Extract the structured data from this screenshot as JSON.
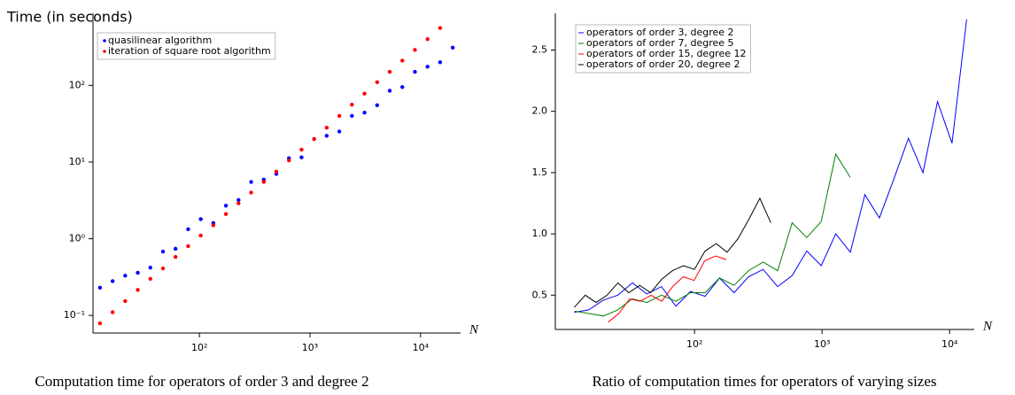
{
  "chart_data": [
    {
      "type": "scatter",
      "ylabel": "Time (in seconds)",
      "xlabel": "N",
      "caption": "Computation time for operators of order 3 and degree 2",
      "xlog": true,
      "ylog": true,
      "xlim": [
        10.9,
        23000
      ],
      "ylim": [
        0.059,
        870
      ],
      "xticks": [
        {
          "value": 100,
          "label": "10²"
        },
        {
          "value": 1000,
          "label": "10³"
        },
        {
          "value": 10000,
          "label": "10⁴"
        }
      ],
      "yticks": [
        {
          "value": 0.1,
          "label": "10⁻¹"
        },
        {
          "value": 1,
          "label": "10⁰"
        },
        {
          "value": 10,
          "label": "10¹"
        },
        {
          "value": 100,
          "label": "10²"
        }
      ],
      "legend": "upper left",
      "series": [
        {
          "name": "quasilinear algorithm",
          "color": "#0000ff",
          "x": [
            12.6,
            16.4,
            21.3,
            27.7,
            36.0,
            46.8,
            60.8,
            79.1,
            102.8,
            133.6,
            173.7,
            225.8,
            293.6,
            381.7,
            496.2,
            645.0,
            838.5,
            1090,
            1417,
            1842,
            2395,
            3114,
            4048,
            5262,
            6841,
            8893,
            11561,
            15029,
            19538
          ],
          "values": [
            0.23,
            0.28,
            0.33,
            0.36,
            0.42,
            0.68,
            0.74,
            1.33,
            1.8,
            1.6,
            2.7,
            3.2,
            5.5,
            5.9,
            7.0,
            11.2,
            11.5,
            20,
            22,
            25,
            40,
            44,
            55,
            85,
            95,
            150,
            175,
            200,
            310
          ]
        },
        {
          "name": "iteration of square root algorithm",
          "color": "#ff0000",
          "x": [
            12.6,
            16.4,
            21.3,
            27.7,
            36.0,
            46.8,
            60.8,
            79.1,
            102.8,
            133.6,
            173.7,
            225.8,
            293.6,
            381.7,
            496.2,
            645.0,
            838.5,
            1090,
            1417,
            1842,
            2395,
            3114,
            4048,
            5262,
            6841,
            8893,
            11561,
            15029
          ],
          "values": [
            0.079,
            0.11,
            0.154,
            0.215,
            0.3,
            0.41,
            0.58,
            0.8,
            1.1,
            1.5,
            2.1,
            2.9,
            4.0,
            5.5,
            7.5,
            10.5,
            14.5,
            20,
            28,
            40,
            56,
            78,
            110,
            150,
            210,
            290,
            400,
            560
          ]
        }
      ]
    },
    {
      "type": "line",
      "xlabel": "N",
      "caption": "Ratio of computation times for operators of varying sizes",
      "xlog": true,
      "ylog": false,
      "xlim": [
        8.1,
        15600
      ],
      "ylim": [
        0.22,
        2.8
      ],
      "xticks": [
        {
          "value": 100,
          "label": "10²"
        },
        {
          "value": 1000,
          "label": "10³"
        },
        {
          "value": 10000,
          "label": "10⁴"
        }
      ],
      "yticks": [
        0.5,
        {
          "value": 1,
          "label": "1.0"
        },
        1.5,
        {
          "value": 2,
          "label": "2.0"
        },
        2.5
      ],
      "legend": "upper left",
      "series": [
        {
          "name": "operators of order 3, degree 2",
          "color": "#0000ff",
          "x": [
            11.4,
            14.8,
            19.3,
            25.0,
            32.6,
            42.3,
            55.0,
            71.5,
            93,
            121,
            157,
            204,
            265,
            345,
            448,
            583,
            758,
            985,
            1280,
            1665,
            2165,
            2814,
            3658,
            4756,
            6183,
            8038,
            10450,
            13585
          ],
          "values": [
            0.36,
            0.38,
            0.46,
            0.5,
            0.6,
            0.51,
            0.57,
            0.41,
            0.53,
            0.49,
            0.64,
            0.52,
            0.65,
            0.71,
            0.57,
            0.66,
            0.86,
            0.74,
            1.0,
            0.85,
            1.32,
            1.13,
            1.45,
            1.78,
            1.5,
            2.08,
            1.74,
            2.75
          ]
        },
        {
          "name": "operators of order 7, degree 5",
          "color": "#008000",
          "x": [
            11.4,
            14.8,
            19.3,
            25.0,
            32.6,
            42.3,
            55.0,
            71.5,
            93,
            121,
            157,
            204,
            265,
            345,
            448,
            583,
            758,
            985,
            1280,
            1665
          ],
          "values": [
            0.37,
            0.35,
            0.33,
            0.38,
            0.47,
            0.44,
            0.5,
            0.45,
            0.52,
            0.52,
            0.64,
            0.58,
            0.7,
            0.77,
            0.7,
            1.09,
            0.97,
            1.1,
            1.65,
            1.46
          ]
        },
        {
          "name": "operators of order 15, degree 12",
          "color": "#ff0000",
          "x": [
            21,
            25.5,
            31,
            37.6,
            45.6,
            55.4,
            67.3,
            81.7,
            99.2,
            120,
            146,
            178
          ],
          "values": [
            0.28,
            0.35,
            0.47,
            0.45,
            0.5,
            0.45,
            0.57,
            0.65,
            0.62,
            0.78,
            0.82,
            0.79
          ]
        },
        {
          "name": "operators of order 20, degree 2",
          "color": "#000000",
          "x": [
            11.4,
            13.9,
            16.9,
            20.6,
            25.1,
            30.5,
            37.2,
            45.3,
            55.2,
            67.2,
            81.9,
            99.7,
            121,
            148,
            180,
            219,
            267,
            325,
            396
          ],
          "values": [
            0.4,
            0.5,
            0.44,
            0.5,
            0.6,
            0.52,
            0.58,
            0.52,
            0.63,
            0.7,
            0.74,
            0.71,
            0.86,
            0.92,
            0.85,
            0.96,
            1.12,
            1.29,
            1.09
          ]
        }
      ]
    }
  ]
}
